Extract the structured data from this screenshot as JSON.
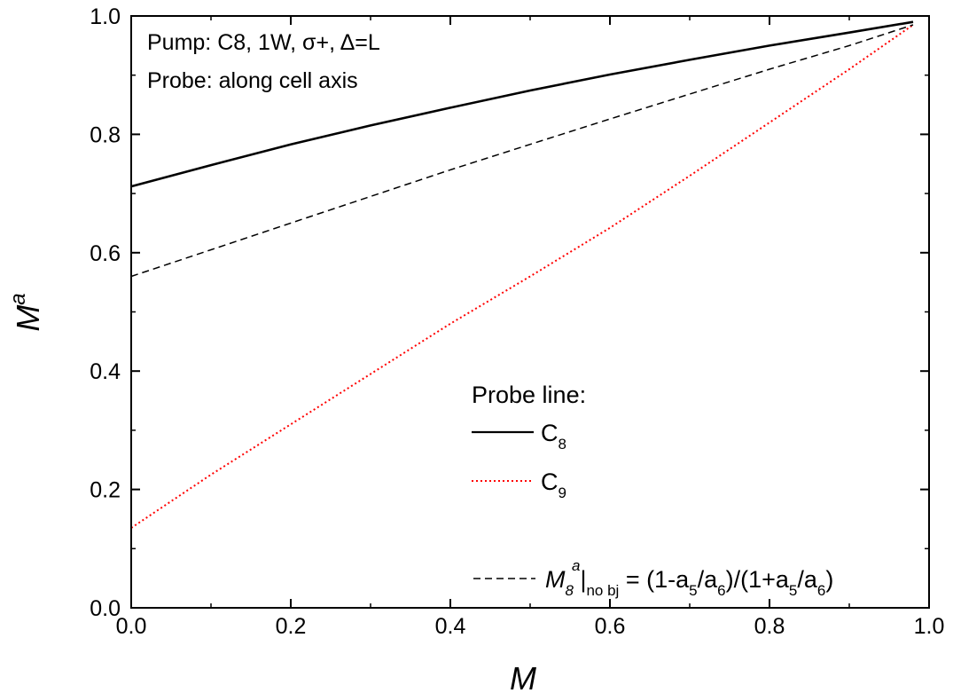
{
  "chart_data": {
    "type": "line",
    "title": "",
    "xlabel": "M",
    "ylabel": "M",
    "ylabel_superscript": "a",
    "xlim": [
      0.0,
      1.0
    ],
    "ylim": [
      0.0,
      1.0
    ],
    "xticks": [
      0.0,
      0.2,
      0.4,
      0.6,
      0.8,
      1.0
    ],
    "yticks": [
      0.0,
      0.2,
      0.4,
      0.6,
      0.8,
      1.0
    ],
    "xtick_labels": [
      "0.0",
      "0.2",
      "0.4",
      "0.6",
      "0.8",
      "1.0"
    ],
    "ytick_labels": [
      "0.0",
      "0.2",
      "0.4",
      "0.6",
      "0.8",
      "1.0"
    ],
    "grid": false,
    "legend_position": "bottom-right",
    "annotations": [
      "Pump: C8, 1W, σ+, Δ=L",
      "Probe: along cell axis"
    ],
    "legend_title": "Probe line:",
    "series": [
      {
        "name": "C8",
        "legend_main": "C",
        "legend_sub": "8",
        "style": "solid",
        "color": "#000000",
        "x": [
          0.0,
          0.1,
          0.2,
          0.3,
          0.4,
          0.5,
          0.6,
          0.7,
          0.8,
          0.9,
          0.98
        ],
        "y": [
          0.712,
          0.748,
          0.783,
          0.815,
          0.845,
          0.874,
          0.901,
          0.926,
          0.95,
          0.972,
          0.99
        ]
      },
      {
        "name": "C9",
        "legend_main": "C",
        "legend_sub": "9",
        "style": "dotted",
        "color": "#ff0000",
        "x": [
          0.0,
          0.1,
          0.2,
          0.3,
          0.4,
          0.5,
          0.6,
          0.7,
          0.8,
          0.9,
          0.98
        ],
        "y": [
          0.135,
          0.225,
          0.31,
          0.395,
          0.48,
          0.56,
          0.642,
          0.73,
          0.82,
          0.91,
          0.985
        ]
      },
      {
        "name": "M8a|no bj = (1-a5/a6)/(1+a5/a6)",
        "style": "dashed",
        "color": "#000000",
        "legend_parts": {
          "m": "M",
          "sub8": "8",
          "supA": "a",
          "bar": "|",
          "subNoBj": "no bj",
          "eq": " = (1-a",
          "s5a": "5",
          "slash1": "/a",
          "s6a": "6",
          "mid": ")/(1+a",
          "s5b": "5",
          "slash2": "/a",
          "s6b": "6",
          "close": ")"
        },
        "x": [
          0.0,
          0.1,
          0.2,
          0.3,
          0.4,
          0.5,
          0.6,
          0.7,
          0.8,
          0.9,
          0.98
        ],
        "y": [
          0.56,
          0.605,
          0.65,
          0.695,
          0.74,
          0.783,
          0.826,
          0.868,
          0.91,
          0.95,
          0.985
        ]
      }
    ]
  }
}
